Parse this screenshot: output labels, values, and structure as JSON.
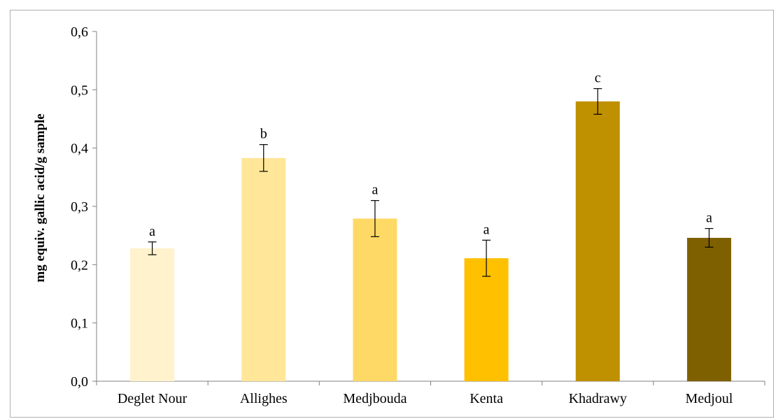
{
  "chart_data": {
    "type": "bar",
    "title": "",
    "xlabel": "",
    "ylabel": "mg equiv. gallic acid/g sample",
    "ylim": [
      0,
      0.6
    ],
    "yticks": [
      0,
      0.1,
      0.2,
      0.3,
      0.4,
      0.5,
      0.6
    ],
    "ytick_labels": [
      "0,0",
      "0,1",
      "0,2",
      "0,3",
      "0,4",
      "0,5",
      "0,6"
    ],
    "grid": false,
    "categories": [
      "Deglet Nour",
      "Allighes",
      "Medjbouda",
      "Kenta",
      "Khadrawy",
      "Medjoul"
    ],
    "values": [
      0.228,
      0.383,
      0.279,
      0.211,
      0.48,
      0.246
    ],
    "errors": [
      0.011,
      0.023,
      0.031,
      0.031,
      0.022,
      0.016
    ],
    "significance_labels": [
      "a",
      "b",
      "a",
      "a",
      "c",
      "a"
    ],
    "colors": [
      "#FFF2CC",
      "#FFE699",
      "#FFD966",
      "#FFC000",
      "#BF9000",
      "#7F6000"
    ]
  }
}
